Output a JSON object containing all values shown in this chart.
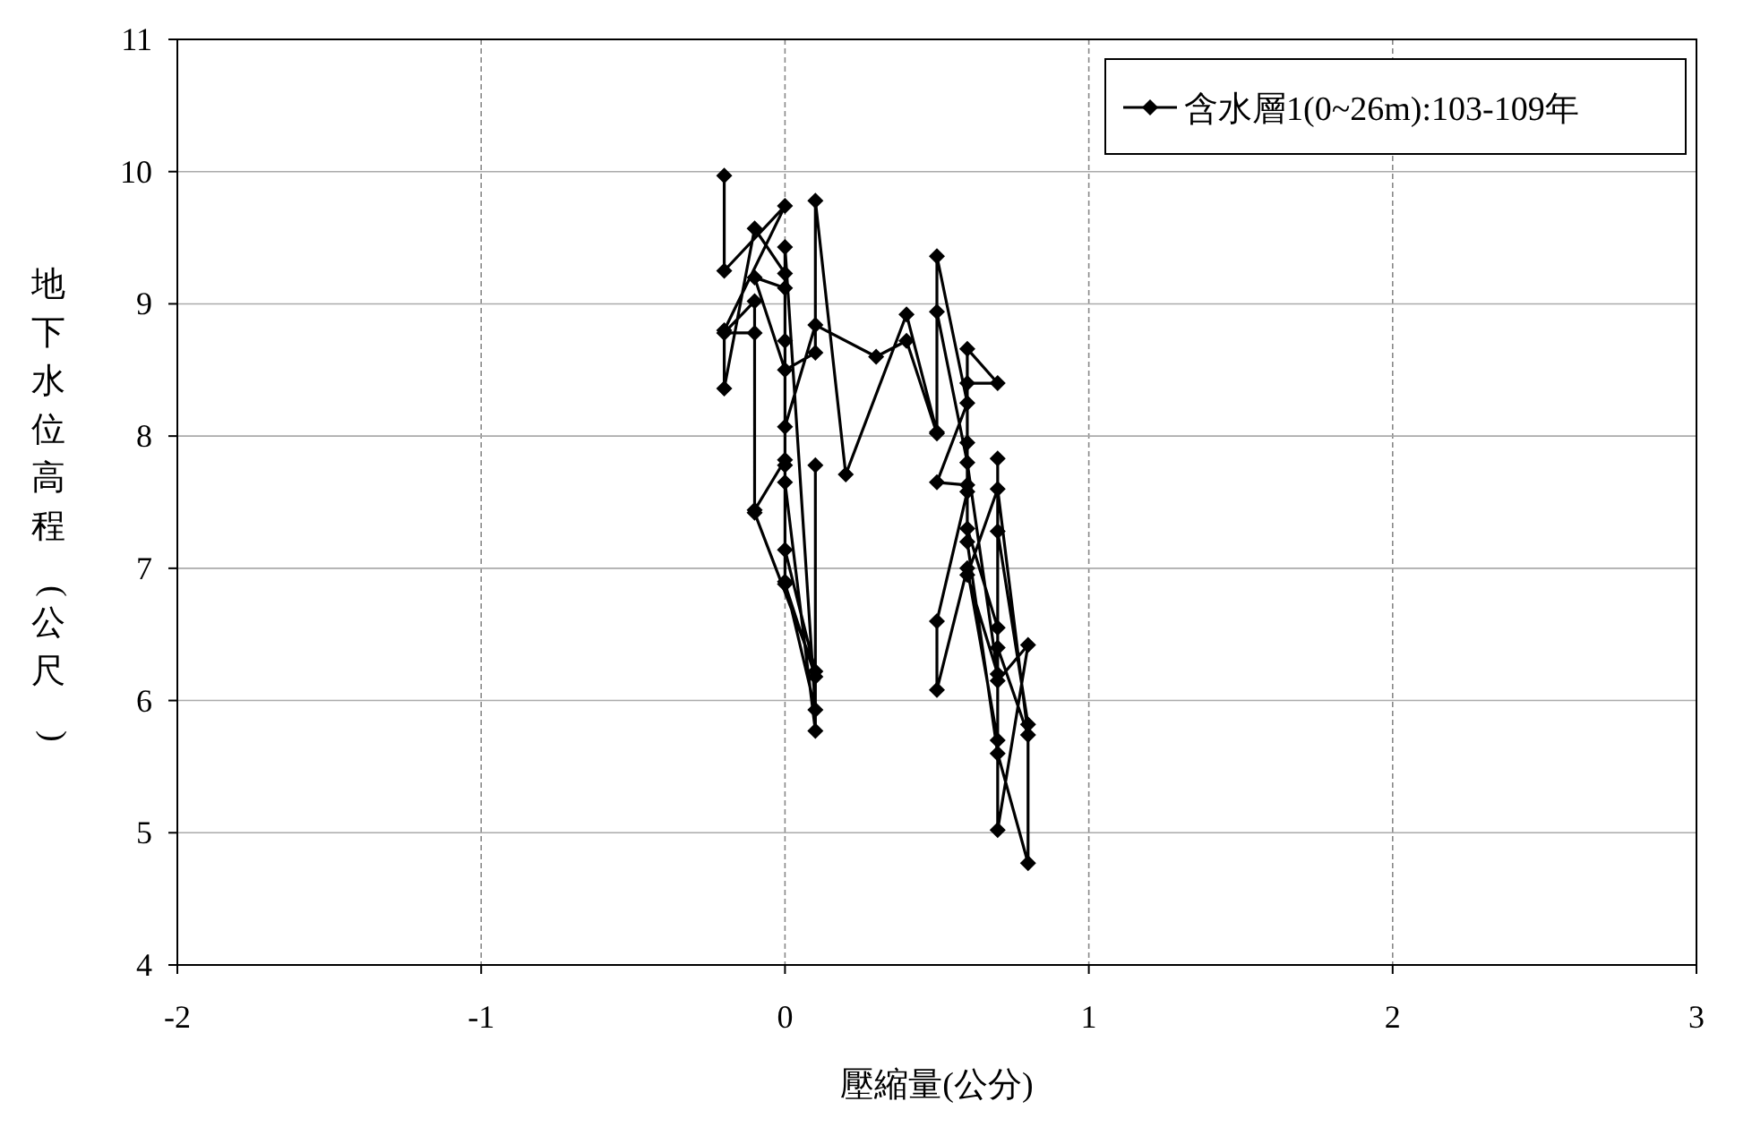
{
  "chart_data": {
    "type": "line",
    "xlabel": "壓縮量(公分)",
    "ylabel": "地下水位高程(公尺)",
    "xlim": [
      -2,
      3
    ],
    "xticks": [
      -2,
      -1,
      0,
      1,
      2,
      3
    ],
    "ylim": [
      4,
      11
    ],
    "yticks": [
      4,
      5,
      6,
      7,
      8,
      9,
      10,
      11
    ],
    "grid": true,
    "legend": "top right",
    "marker": "diamond",
    "line_style": "solid",
    "series": [
      {
        "name": "含水層1(0~26m):103-109年",
        "color": "#000000",
        "x": [
          -0.2,
          -0.2,
          0,
          -0.2,
          -0.2,
          -0.1,
          0,
          0,
          0,
          -0.1,
          -0.1,
          -0.2,
          -0.1,
          -0.1,
          0.1,
          0,
          0,
          0.1,
          0,
          0,
          -0.1,
          0,
          0.1,
          0.1,
          0.2,
          0.4,
          0.5,
          0.5,
          0.6,
          0.5,
          0.6,
          0.6,
          0.7,
          0.6,
          0.6,
          0.6,
          0.7,
          0.7,
          0.8,
          0.7,
          0.7,
          0.7,
          0.8,
          0.8,
          0.7,
          0.6,
          0.6,
          0.5,
          0.5,
          0.6,
          0.7,
          0.7,
          0.8,
          0.7,
          0.6,
          0.7,
          0.6,
          0.5,
          0.5,
          0.4,
          0.3,
          0.1,
          0,
          0,
          0,
          0.1,
          0.1,
          0.1,
          0
        ],
        "values": [
          9.97,
          9.25,
          9.74,
          8.8,
          8.36,
          9.57,
          9.23,
          8.72,
          7.82,
          7.44,
          9.02,
          8.78,
          8.78,
          7.42,
          6.22,
          7.14,
          9.43,
          5.93,
          6.9,
          9.12,
          9.2,
          8.5,
          8.63,
          9.78,
          7.71,
          8.92,
          8.03,
          9.36,
          8.25,
          7.65,
          7.63,
          8.66,
          8.4,
          8.4,
          7.95,
          7.3,
          6.55,
          5.02,
          6.42,
          6.15,
          7.83,
          7.28,
          5.82,
          4.77,
          5.6,
          7.2,
          7.58,
          6.6,
          6.08,
          7.0,
          5.7,
          6.4,
          5.74,
          7.6,
          6.95,
          6.2,
          7.8,
          8.94,
          8.02,
          8.72,
          8.6,
          8.84,
          8.07,
          7.78,
          7.65,
          5.77,
          7.78,
          6.18,
          6.88
        ]
      }
    ]
  }
}
